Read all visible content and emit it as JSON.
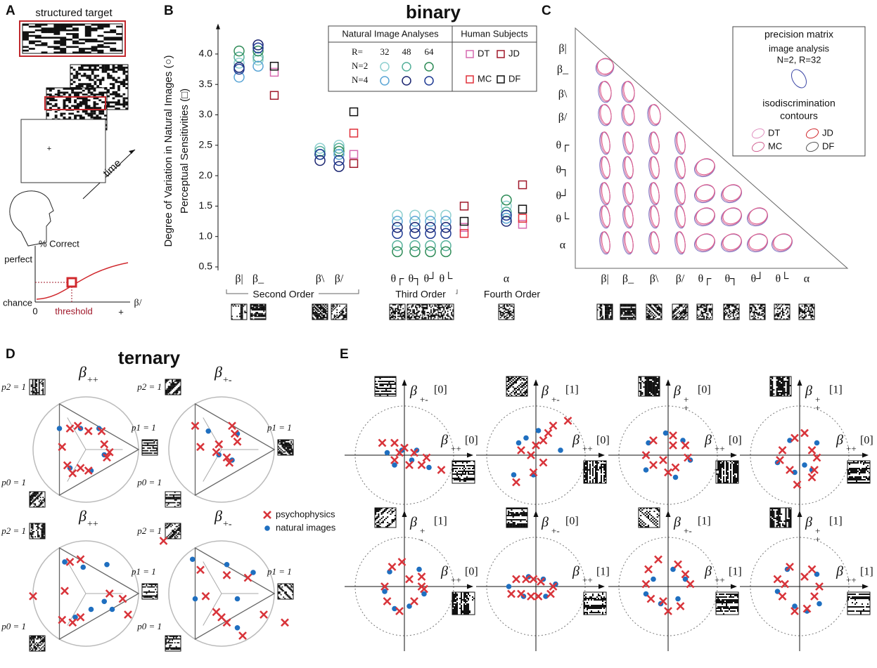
{
  "panel_letters": [
    "A",
    "B",
    "C",
    "D",
    "E"
  ],
  "panel_a": {
    "target_label": "structured target",
    "fixation": "+",
    "time": "time",
    "y_label": "% Correct",
    "y_high": "perfect",
    "y_low": "chance",
    "x_zero": "0",
    "x_plus": "+",
    "threshold": "threshold",
    "x_param": "β/"
  },
  "chart_data": {
    "type": "scatter",
    "title": "binary",
    "y_label": [
      "Degree of Variation in Natural Images (○)",
      "Perceptual Sensitivities (□)"
    ],
    "categories": [
      "β|",
      "β_",
      "β\\",
      "β/",
      "θ┌",
      "θ┐",
      "θ┘",
      "θ└",
      "α"
    ],
    "groups": [
      "Second Order",
      "Third Order",
      "Fourth Order"
    ],
    "ylim": [
      0.5,
      4.5
    ],
    "yticks": [
      {
        "value": 0.5,
        "label": "0.5"
      },
      {
        "value": 1,
        "label": "1.0"
      },
      {
        "value": 1.5,
        "label": "1.5"
      },
      {
        "value": 2,
        "label": "2.0"
      },
      {
        "value": 2.5,
        "label": "2.5"
      },
      {
        "value": 3,
        "label": "3.0"
      },
      {
        "value": 3.5,
        "label": "3.5"
      },
      {
        "value": 4,
        "label": "4.0"
      }
    ],
    "legend": {
      "natural_header": "Natural Image Analyses",
      "human_header": "Human Subjects",
      "r_label": "R=",
      "r_values": [
        32,
        48,
        64
      ],
      "n_labels": [
        "N=2",
        "N=4"
      ]
    },
    "natural_series": [
      {
        "color": "#8fd0d0",
        "values": [
          3.85,
          3.9,
          2.45,
          2.5,
          1.35,
          1.35,
          1.35,
          1.35,
          1.5
        ]
      },
      {
        "color": "#55b09a",
        "values": [
          3.95,
          3.95,
          2.4,
          2.45,
          0.85,
          0.85,
          0.85,
          0.85,
          1.4
        ]
      },
      {
        "color": "#2e8b57",
        "values": [
          4.05,
          4.05,
          2.35,
          2.4,
          0.75,
          0.75,
          0.75,
          0.75,
          1.6
        ]
      },
      {
        "color": "#5aa5d5",
        "values": [
          3.62,
          3.8,
          2.35,
          2.35,
          1.25,
          1.25,
          1.25,
          1.25,
          1.3
        ]
      },
      {
        "color": "#1a2470",
        "values": [
          3.78,
          4.15,
          2.25,
          2.15,
          1.15,
          1.15,
          1.15,
          1.15,
          1.25
        ]
      },
      {
        "color": "#1f3a93",
        "values": [
          3.75,
          4.1,
          2.35,
          2.25,
          1.05,
          1.05,
          1.05,
          1.05,
          1.35
        ]
      }
    ],
    "human_series": [
      {
        "name": "DT",
        "color": "#d66ab0",
        "values": [
          null,
          3.7,
          null,
          2.35,
          null,
          null,
          null,
          1.15,
          1.2
        ]
      },
      {
        "name": "JD",
        "color": "#a0182a",
        "values": [
          null,
          3.32,
          null,
          2.2,
          null,
          null,
          null,
          1.5,
          1.85
        ]
      },
      {
        "name": "MC",
        "color": "#e0303a",
        "values": [
          null,
          null,
          null,
          2.7,
          null,
          null,
          null,
          1.05,
          1.3
        ]
      },
      {
        "name": "DF",
        "color": "#111111",
        "values": [
          null,
          3.8,
          null,
          3.05,
          null,
          null,
          null,
          1.25,
          1.45
        ]
      }
    ]
  },
  "panel_c": {
    "row_labels": [
      "β|",
      "β_",
      "β\\",
      "β/",
      "θ┌",
      "θ┐",
      "θ┘",
      "θ└",
      "α"
    ],
    "col_labels": [
      "β|",
      "β_",
      "β\\",
      "β/",
      "θ┌",
      "θ┐",
      "θ┘",
      "θ└",
      "α"
    ],
    "legend": [
      "precision matrix",
      "image analysis",
      "N=2, R=32",
      "isodiscrimination",
      "contours"
    ],
    "subjects": [
      "DT",
      "JD",
      "MC",
      "DF"
    ]
  },
  "panel_d": {
    "title": "ternary",
    "vertex_labels": [
      "p2 = 1",
      "p1 = 1",
      "p0 = 1"
    ],
    "legend": [
      "psychophysics",
      "natural images"
    ],
    "panels": [
      {
        "symbol": "β",
        "sub": "++",
        "crosses": [
          [
            -0.3,
            0.4
          ],
          [
            -0.15,
            0.45
          ],
          [
            0.05,
            0.35
          ],
          [
            0.35,
            0.1
          ],
          [
            0.45,
            -0.05
          ],
          [
            0.4,
            -0.15
          ],
          [
            -0.35,
            -0.3
          ],
          [
            -0.1,
            -0.35
          ],
          [
            0.05,
            -0.4
          ],
          [
            -0.45,
            0.05
          ],
          [
            0.3,
            0.35
          ],
          [
            -0.25,
            -0.45
          ]
        ],
        "dots": [
          [
            -0.1,
            0.4
          ],
          [
            0.25,
            0.4
          ],
          [
            0.35,
            -0.1
          ],
          [
            -0.3,
            -0.35
          ],
          [
            0.1,
            -0.4
          ],
          [
            -0.5,
            0.4
          ]
        ]
      },
      {
        "symbol": "β",
        "sub": "+-",
        "crosses": [
          [
            -0.5,
            0.45
          ],
          [
            0.2,
            0.45
          ],
          [
            -0.4,
            0.05
          ],
          [
            -0.1,
            -0.05
          ],
          [
            0.1,
            -0.15
          ],
          [
            0.15,
            -0.25
          ],
          [
            0.3,
            0.15
          ],
          [
            -0.05,
            0.1
          ],
          [
            0.25,
            0.3
          ]
        ],
        "dots": [
          [
            -0.25,
            0.35
          ],
          [
            0.3,
            0.3
          ],
          [
            0.2,
            -0.2
          ],
          [
            -0.05,
            -0.1
          ]
        ]
      },
      {
        "symbol": "β",
        "sub": "++",
        "crosses": [
          [
            -0.3,
            0.6
          ],
          [
            -0.1,
            0.65
          ],
          [
            -0.4,
            0.05
          ],
          [
            0.45,
            0.0
          ],
          [
            0.7,
            -0.1
          ],
          [
            0.8,
            -0.4
          ],
          [
            -0.45,
            -0.5
          ],
          [
            -0.25,
            -0.55
          ],
          [
            -0.1,
            -0.45
          ],
          [
            -1.0,
            -0.05
          ]
        ],
        "dots": [
          [
            -0.4,
            0.6
          ],
          [
            -0.05,
            0.5
          ],
          [
            0.4,
            0.55
          ],
          [
            0.35,
            -0.15
          ],
          [
            0.1,
            -0.3
          ],
          [
            -0.2,
            -0.45
          ],
          [
            0.5,
            -0.3
          ]
        ]
      },
      {
        "symbol": "β",
        "sub": "+-",
        "crosses": [
          [
            -1.1,
            1.0
          ],
          [
            -0.4,
            0.45
          ],
          [
            0.1,
            0.35
          ],
          [
            -0.3,
            -0.05
          ],
          [
            -0.1,
            -0.35
          ],
          [
            0.0,
            -0.45
          ],
          [
            0.1,
            -0.55
          ],
          [
            0.5,
            0.3
          ],
          [
            0.8,
            -0.4
          ],
          [
            1.2,
            -0.55
          ],
          [
            0.4,
            -0.8
          ]
        ],
        "dots": [
          [
            -0.55,
            0.65
          ],
          [
            0.1,
            0.55
          ],
          [
            0.6,
            0.4
          ],
          [
            0.3,
            -0.1
          ],
          [
            -0.5,
            -0.1
          ],
          [
            0.3,
            -0.65
          ]
        ]
      }
    ]
  },
  "panel_e": {
    "panels": [
      {
        "symbol": "β",
        "top_sub": [
          "+-"
        ],
        "top_tag": "[0]",
        "right_sub": [
          "++"
        ],
        "right_tag": "[0]",
        "crosses": [
          [
            -0.45,
            0.25
          ],
          [
            -0.2,
            0.25
          ],
          [
            0.0,
            0.15
          ],
          [
            0.2,
            0.05
          ],
          [
            0.45,
            -0.05
          ],
          [
            -0.2,
            -0.1
          ],
          [
            0.1,
            -0.2
          ],
          [
            0.35,
            -0.2
          ],
          [
            0.75,
            -0.3
          ],
          [
            -0.1,
            0.05
          ]
        ],
        "dots": [
          [
            -0.35,
            0.05
          ],
          [
            -0.05,
            0.1
          ],
          [
            0.15,
            -0.1
          ],
          [
            0.25,
            0.1
          ],
          [
            -0.2,
            -0.2
          ],
          [
            0.5,
            -0.25
          ]
        ]
      },
      {
        "symbol": "β",
        "top_sub": [
          "+-"
        ],
        "top_tag": "[1]",
        "right_sub": [
          "++"
        ],
        "right_tag": "[0]",
        "crosses": [
          [
            -0.1,
            0.0
          ],
          [
            0.0,
            0.2
          ],
          [
            0.15,
            0.3
          ],
          [
            0.25,
            0.45
          ],
          [
            0.35,
            0.6
          ],
          [
            0.65,
            0.7
          ],
          [
            0.15,
            -0.15
          ],
          [
            -0.05,
            -0.35
          ],
          [
            -0.4,
            -0.55
          ],
          [
            -0.3,
            0.1
          ]
        ],
        "dots": [
          [
            -0.35,
            0.25
          ],
          [
            -0.2,
            0.35
          ],
          [
            0.05,
            0.5
          ],
          [
            0.5,
            0.1
          ],
          [
            -0.05,
            -0.4
          ],
          [
            -0.45,
            -0.4
          ]
        ]
      },
      {
        "symbol": "β",
        "top_sub": [
          "+",
          "+"
        ],
        "top_tag": "[0]",
        "right_sub": [
          "++"
        ],
        "right_tag": "[0]",
        "crosses": [
          [
            -0.3,
            0.3
          ],
          [
            0.1,
            0.4
          ],
          [
            0.35,
            0.2
          ],
          [
            -0.45,
            0.0
          ],
          [
            0.4,
            -0.05
          ],
          [
            -0.3,
            -0.2
          ],
          [
            0.15,
            -0.25
          ],
          [
            0.0,
            -0.35
          ],
          [
            0.1,
            0.2
          ],
          [
            -0.1,
            -0.1
          ]
        ],
        "dots": [
          [
            -0.05,
            0.45
          ],
          [
            -0.4,
            0.25
          ],
          [
            0.3,
            0.3
          ],
          [
            0.45,
            -0.1
          ],
          [
            -0.45,
            -0.3
          ],
          [
            0.15,
            -0.45
          ]
        ]
      },
      {
        "symbol": "β",
        "top_sub": [
          "+",
          "+"
        ],
        "top_tag": "[1]",
        "right_sub": [
          "++"
        ],
        "right_tag": "[0]",
        "crosses": [
          [
            -0.1,
            0.35
          ],
          [
            0.1,
            0.45
          ],
          [
            -0.35,
            0.1
          ],
          [
            0.25,
            0.1
          ],
          [
            0.35,
            -0.05
          ],
          [
            -0.4,
            -0.1
          ],
          [
            0.3,
            -0.3
          ],
          [
            -0.2,
            -0.3
          ],
          [
            -0.05,
            -0.6
          ],
          [
            0.25,
            -0.45
          ]
        ],
        "dots": [
          [
            -0.2,
            0.3
          ],
          [
            0.35,
            0.25
          ],
          [
            -0.45,
            -0.15
          ],
          [
            0.1,
            -0.2
          ],
          [
            -0.1,
            -0.35
          ],
          [
            0.25,
            -0.3
          ]
        ]
      },
      {
        "symbol": "β",
        "top_sub": [
          "+",
          "-"
        ],
        "top_tag": "[1]",
        "right_sub": [
          "++"
        ],
        "right_tag": "[0]",
        "crosses": [
          [
            -0.25,
            0.4
          ],
          [
            -0.05,
            0.5
          ],
          [
            0.1,
            0.15
          ],
          [
            0.35,
            0.2
          ],
          [
            -0.4,
            0.0
          ],
          [
            0.4,
            -0.05
          ],
          [
            -0.35,
            -0.3
          ],
          [
            0.2,
            -0.3
          ],
          [
            -0.1,
            -0.5
          ],
          [
            0.35,
            0.0
          ]
        ],
        "dots": [
          [
            -0.3,
            0.3
          ],
          [
            0.3,
            0.35
          ],
          [
            -0.4,
            -0.1
          ],
          [
            0.4,
            -0.15
          ],
          [
            -0.2,
            -0.45
          ],
          [
            0.1,
            -0.4
          ]
        ]
      },
      {
        "symbol": "β",
        "top_sub": [
          "+-"
        ],
        "top_tag": "[0]",
        "right_sub": [
          "++"
        ],
        "right_tag": "[1]",
        "crosses": [
          [
            -0.4,
            0.15
          ],
          [
            -0.2,
            0.15
          ],
          [
            -0.05,
            0.15
          ],
          [
            0.1,
            0.1
          ],
          [
            0.35,
            0.0
          ],
          [
            -0.5,
            -0.15
          ],
          [
            -0.3,
            -0.15
          ],
          [
            -0.1,
            -0.2
          ],
          [
            0.05,
            -0.2
          ],
          [
            0.3,
            -0.15
          ]
        ],
        "dots": [
          [
            -0.55,
            0.0
          ],
          [
            -0.15,
            0.2
          ],
          [
            0.15,
            0.15
          ],
          [
            0.4,
            0.05
          ],
          [
            -0.25,
            -0.2
          ],
          [
            0.2,
            -0.2
          ]
        ]
      },
      {
        "symbol": "β",
        "top_sub": [
          "+-"
        ],
        "top_tag": "[1]",
        "right_sub": [
          "++"
        ],
        "right_tag": "[1]",
        "crosses": [
          [
            -0.4,
            0.35
          ],
          [
            -0.2,
            0.55
          ],
          [
            0.2,
            0.45
          ],
          [
            0.35,
            0.25
          ],
          [
            -0.45,
            0.05
          ],
          [
            0.45,
            0.05
          ],
          [
            -0.35,
            -0.25
          ],
          [
            0.0,
            -0.5
          ],
          [
            0.25,
            -0.4
          ],
          [
            -0.1,
            -0.3
          ]
        ],
        "dots": [
          [
            -0.45,
            -0.15
          ],
          [
            -0.15,
            -0.35
          ],
          [
            0.2,
            -0.25
          ],
          [
            0.35,
            0.15
          ],
          [
            -0.3,
            0.15
          ],
          [
            0.1,
            0.35
          ]
        ]
      },
      {
        "symbol": "β",
        "top_sub": [
          "+",
          "+"
        ],
        "top_tag": "[1]",
        "right_sub": [
          "++"
        ],
        "right_tag": "[1]",
        "crosses": [
          [
            -0.2,
            0.4
          ],
          [
            0.25,
            0.35
          ],
          [
            -0.45,
            0.15
          ],
          [
            0.4,
            0.0
          ],
          [
            -0.35,
            -0.2
          ],
          [
            0.3,
            -0.2
          ],
          [
            -0.1,
            -0.5
          ],
          [
            0.15,
            -0.45
          ],
          [
            0.1,
            0.2
          ],
          [
            -0.3,
            0.05
          ]
        ],
        "dots": [
          [
            -0.25,
            0.35
          ],
          [
            0.35,
            0.25
          ],
          [
            -0.45,
            -0.1
          ],
          [
            0.4,
            -0.35
          ],
          [
            -0.1,
            -0.4
          ],
          [
            0.15,
            -0.5
          ]
        ]
      }
    ]
  }
}
